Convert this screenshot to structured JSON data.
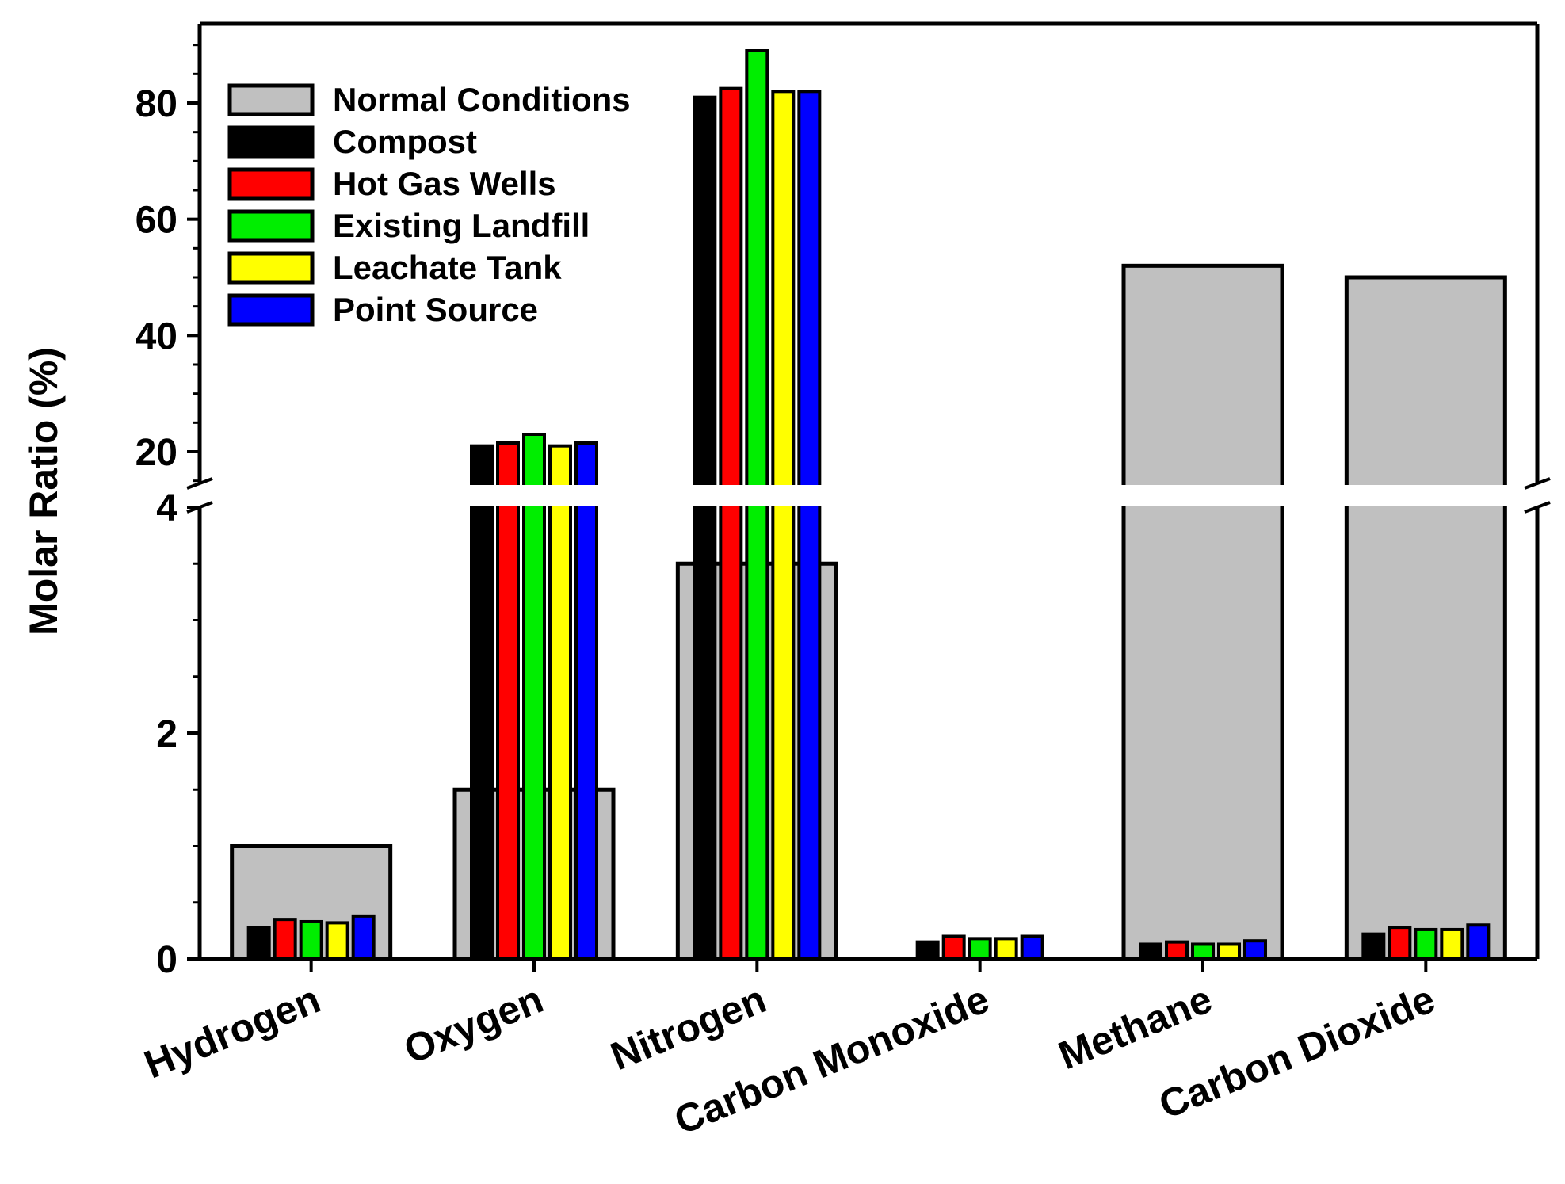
{
  "chart_data": {
    "type": "bar",
    "ylabel": "Molar Ratio (%)",
    "xlabel": "",
    "title": "",
    "broken_axis": {
      "lower_range": [
        0,
        4
      ],
      "upper_range": [
        15,
        93
      ],
      "lower_ticks": [
        0,
        2,
        4
      ],
      "upper_ticks": [
        20,
        40,
        60,
        80
      ],
      "lower_tick_labels": [
        "0",
        "2",
        "4"
      ],
      "upper_tick_labels": [
        "20",
        "40",
        "60",
        "80"
      ]
    },
    "categories": [
      "Hydrogen",
      "Oxygen",
      "Nitrogen",
      "Carbon Monoxide",
      "Methane",
      "Carbon Dioxide"
    ],
    "background_series": {
      "name": "Normal Conditions",
      "color": "#c0c0c0",
      "values": [
        1.0,
        1.5,
        3.5,
        null,
        52,
        50
      ]
    },
    "series": [
      {
        "name": "Compost",
        "color": "#000000",
        "values": [
          0.28,
          21,
          81,
          0.15,
          0.13,
          0.22
        ]
      },
      {
        "name": "Hot Gas Wells",
        "color": "#ff0000",
        "values": [
          0.35,
          21.5,
          82.5,
          0.2,
          0.15,
          0.28
        ]
      },
      {
        "name": "Existing Landfill",
        "color": "#00ee00",
        "values": [
          0.33,
          23,
          89,
          0.18,
          0.13,
          0.26
        ]
      },
      {
        "name": "Leachate Tank",
        "color": "#ffff00",
        "values": [
          0.32,
          21,
          82,
          0.18,
          0.13,
          0.26
        ]
      },
      {
        "name": "Point Source",
        "color": "#0000ff",
        "values": [
          0.38,
          21.5,
          82,
          0.2,
          0.16,
          0.3
        ]
      }
    ],
    "legend_position": "top-left",
    "grid": false
  }
}
